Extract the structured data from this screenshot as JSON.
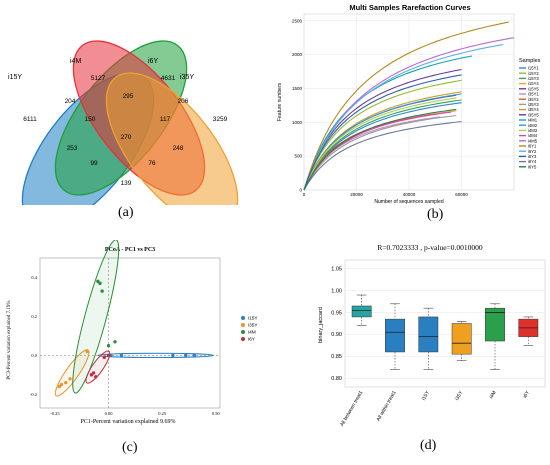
{
  "figure": {
    "panel_labels": [
      "(a)",
      "(b)",
      "(c)",
      "(d)"
    ]
  },
  "venn": {
    "sets": [
      {
        "name": "i15Y",
        "color": "#1e7fc2",
        "total": 6111
      },
      {
        "name": "i4M",
        "color": "#1f9e3a",
        "total": 5127
      },
      {
        "name": "i6Y",
        "color": "#e8303a",
        "total": 4631
      },
      {
        "name": "i35Y",
        "color": "#f0a030",
        "total": 3259
      }
    ],
    "region_values": [
      "6111",
      "5127",
      "4631",
      "3259",
      "204",
      "295",
      "206",
      "150",
      "117",
      "270",
      "253",
      "248",
      "99",
      "76",
      "139"
    ]
  },
  "rarefaction": {
    "chart_data": {
      "type": "line",
      "title": "Multi Samples Rarefaction Curves",
      "xlabel": "Number of sequences sampled",
      "ylabel": "Feature numbers",
      "xlim": [
        0,
        80000
      ],
      "ylim": [
        0,
        2600
      ],
      "x_ticks": [
        "0",
        "20000",
        "40000",
        "60000"
      ],
      "y_ticks": [
        "0",
        "500",
        "1000",
        "1500",
        "2000",
        "2500"
      ],
      "legend_title": "Samples",
      "legend": "right",
      "grid": true,
      "series": [
        {
          "name": "i15Y1",
          "color": "#2d89c9",
          "end_x": 60000,
          "end_y": 1290
        },
        {
          "name": "i15Y2",
          "color": "#97bb2a",
          "end_x": 60000,
          "end_y": 1620
        },
        {
          "name": "i15Y3",
          "color": "#3aa05a",
          "end_x": 60000,
          "end_y": 1330
        },
        {
          "name": "i15Y4",
          "color": "#f0a030",
          "end_x": 58000,
          "end_y": 1170
        },
        {
          "name": "i15Y5",
          "color": "#6a3d9a",
          "end_x": 60000,
          "end_y": 1780
        },
        {
          "name": "i35Y1",
          "color": "#c08abf",
          "end_x": 52000,
          "end_y": 1080
        },
        {
          "name": "i35Y2",
          "color": "#e05a2b",
          "end_x": 50000,
          "end_y": 1120
        },
        {
          "name": "i35Y3",
          "color": "#9a9a9a",
          "end_x": 58000,
          "end_y": 1100
        },
        {
          "name": "i35Y4",
          "color": "#c9a227",
          "end_x": 60000,
          "end_y": 1450
        },
        {
          "name": "i35Y5",
          "color": "#5c3a99",
          "end_x": 58000,
          "end_y": 1400
        },
        {
          "name": "i4M1",
          "color": "#1aa5a5",
          "end_x": 64000,
          "end_y": 1980
        },
        {
          "name": "i4M2",
          "color": "#3a9ad9",
          "end_x": 60000,
          "end_y": 1420
        },
        {
          "name": "i4M3",
          "color": "#a8d44a",
          "end_x": 58000,
          "end_y": 1360
        },
        {
          "name": "i4M4",
          "color": "#d84aa8",
          "end_x": 56000,
          "end_y": 1150
        },
        {
          "name": "i4M5",
          "color": "#bb6ad0",
          "end_x": 80000,
          "end_y": 2250
        },
        {
          "name": "i6Y1",
          "color": "#b58a1a",
          "end_x": 78000,
          "end_y": 2480
        },
        {
          "name": "i6Y2",
          "color": "#5bb0e8",
          "end_x": 76000,
          "end_y": 2150
        },
        {
          "name": "i6Y3",
          "color": "#2a5fb0",
          "end_x": 60000,
          "end_y": 1700
        },
        {
          "name": "i6Y4",
          "color": "#6a7a9a",
          "end_x": 60000,
          "end_y": 1010
        },
        {
          "name": "i6Y5",
          "color": "#2e7d50",
          "end_x": 58000,
          "end_y": 1190
        }
      ]
    }
  },
  "pcoa": {
    "chart_data": {
      "type": "scatter",
      "title": "PCoA - PC1 vs PC3",
      "xlabel": "PC1-Percent variation explained 9.69%",
      "ylabel": "PC3-Percent variation explained 7.19%",
      "x_ticks": [
        "-0.25",
        "0.00",
        "0.25",
        "0.50"
      ],
      "y_ticks": [
        "0.4",
        "0.2",
        "0.0",
        "-0.2"
      ],
      "legend": "right",
      "series": [
        {
          "name": "i15Y",
          "color": "#2d7fc0",
          "points": [
            [
              0.01,
              0.0
            ],
            [
              0.06,
              0.0
            ],
            [
              0.3,
              0.0
            ],
            [
              0.36,
              0.0
            ],
            [
              0.4,
              0.0
            ]
          ]
        },
        {
          "name": "i35Y",
          "color": "#e6962a",
          "points": [
            [
              -0.2,
              -0.14
            ],
            [
              -0.22,
              -0.15
            ],
            [
              -0.18,
              -0.12
            ],
            [
              -0.23,
              -0.16
            ],
            [
              -0.1,
              0.02
            ]
          ]
        },
        {
          "name": "i4M",
          "color": "#2a8f3a",
          "points": [
            [
              -0.05,
              0.38
            ],
            [
              -0.04,
              0.37
            ],
            [
              -0.03,
              0.33
            ],
            [
              0.0,
              0.05
            ],
            [
              0.03,
              0.07
            ]
          ]
        },
        {
          "name": "i6Y",
          "color": "#c0303a",
          "points": [
            [
              -0.07,
              -0.09
            ],
            [
              -0.08,
              -0.1
            ],
            [
              -0.06,
              -0.11
            ],
            [
              0.0,
              0.0
            ],
            [
              -0.02,
              -0.01
            ]
          ]
        }
      ]
    }
  },
  "boxplot": {
    "chart_data": {
      "type": "box",
      "title": "R=0.7023333 , p-value=0.0010000",
      "ylabel": "binary_jaccard",
      "ylim": [
        0.78,
        1.07
      ],
      "y_ticks": [
        "0.80",
        "0.85",
        "0.90",
        "0.95",
        "1.00",
        "1.05"
      ],
      "categories": [
        "All between treat1",
        "All within treat1",
        "i15Y",
        "i35Y",
        "i4M",
        "i6Y"
      ],
      "boxes": [
        {
          "name": "All between treat1",
          "color": "#26a3a3",
          "min": 0.92,
          "q1": 0.94,
          "median": 0.955,
          "q3": 0.965,
          "max": 0.99
        },
        {
          "name": "All within treat1",
          "color": "#2a7fc0",
          "min": 0.82,
          "q1": 0.86,
          "median": 0.905,
          "q3": 0.935,
          "max": 0.97
        },
        {
          "name": "i15Y",
          "color": "#2a7fc0",
          "min": 0.82,
          "q1": 0.86,
          "median": 0.895,
          "q3": 0.94,
          "max": 0.96
        },
        {
          "name": "i35Y",
          "color": "#f0a020",
          "min": 0.84,
          "q1": 0.855,
          "median": 0.88,
          "q3": 0.925,
          "max": 0.93
        },
        {
          "name": "i4M",
          "color": "#2aa04a",
          "min": 0.82,
          "q1": 0.885,
          "median": 0.95,
          "q3": 0.96,
          "max": 0.97
        },
        {
          "name": "i6Y",
          "color": "#e0302a",
          "min": 0.875,
          "q1": 0.895,
          "median": 0.915,
          "q3": 0.935,
          "max": 0.94
        }
      ]
    }
  }
}
